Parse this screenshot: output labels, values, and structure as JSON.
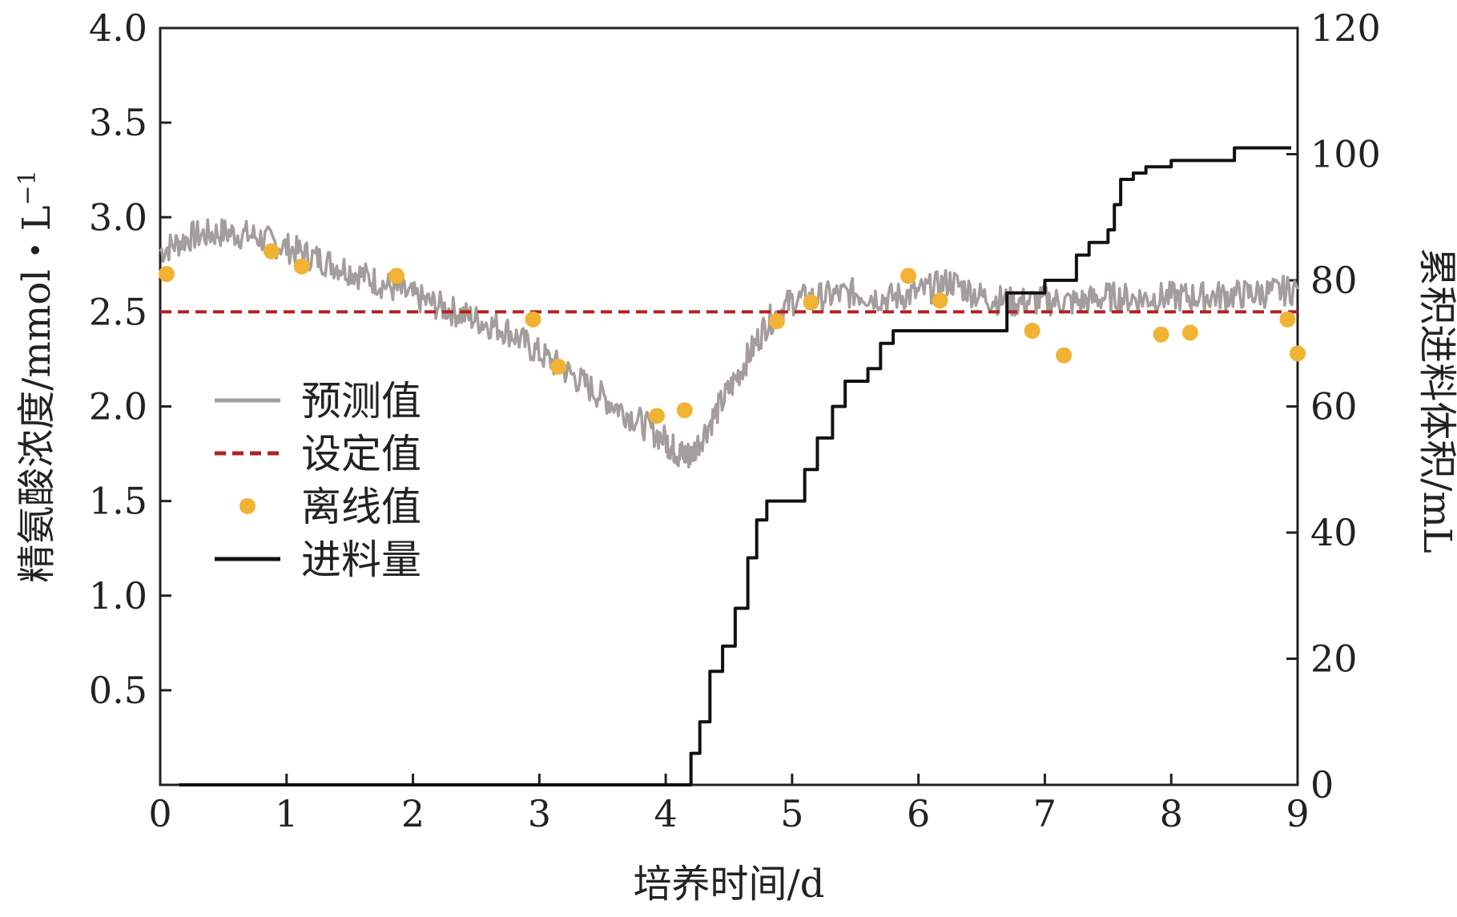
{
  "chart_data": {
    "type": "line",
    "xlabel": "培养时间/d",
    "ylabel_left": "精氨酸浓度/mmol・L",
    "ylabel_left_sup": "−1",
    "ylabel_right": "累积进料体积/mL",
    "xlim": [
      0,
      9
    ],
    "ylim_left": [
      0,
      4.0
    ],
    "ylim_right": [
      0,
      120
    ],
    "x_ticks": [
      0,
      1,
      2,
      3,
      4,
      5,
      6,
      7,
      8,
      9
    ],
    "y_left_ticks": [
      0.5,
      1.0,
      1.5,
      2.0,
      2.5,
      3.0,
      3.5,
      4.0
    ],
    "y_left_tick_labels": [
      "0.5",
      "1.0",
      "1.5",
      "2.0",
      "2.5",
      "3.0",
      "3.5",
      "4.0"
    ],
    "y_right_ticks": [
      0,
      20,
      40,
      60,
      80,
      100,
      120
    ],
    "grid": false,
    "legend_position": "left",
    "colors": {
      "predicted": "#a39d9b",
      "setpoint": "#b22222",
      "offline": "#f2b233",
      "feed": "#111111",
      "axis": "#222222"
    },
    "series": [
      {
        "name": "预测值",
        "axis": "left",
        "style": "line",
        "x": [
          0.0,
          0.25,
          0.5,
          0.75,
          1.0,
          1.25,
          1.5,
          1.75,
          2.0,
          2.25,
          2.5,
          2.75,
          3.0,
          3.25,
          3.5,
          3.75,
          4.0,
          4.1,
          4.2,
          4.4,
          4.6,
          4.8,
          5.0,
          5.25,
          5.5,
          5.75,
          6.0,
          6.25,
          6.5,
          6.75,
          7.0,
          7.25,
          7.5,
          7.75,
          8.0,
          8.25,
          8.5,
          8.75,
          9.0
        ],
        "y": [
          2.82,
          2.9,
          2.92,
          2.9,
          2.84,
          2.78,
          2.72,
          2.65,
          2.58,
          2.52,
          2.46,
          2.4,
          2.28,
          2.17,
          2.05,
          1.94,
          1.82,
          1.75,
          1.74,
          1.97,
          2.2,
          2.44,
          2.56,
          2.58,
          2.6,
          2.57,
          2.6,
          2.66,
          2.58,
          2.55,
          2.56,
          2.55,
          2.58,
          2.57,
          2.58,
          2.58,
          2.59,
          2.6,
          2.62
        ]
      },
      {
        "name": "设定值",
        "axis": "left",
        "style": "dashed",
        "x": [
          0,
          9
        ],
        "y": [
          2.5,
          2.5
        ]
      },
      {
        "name": "离线值",
        "axis": "left",
        "style": "scatter",
        "x": [
          0.05,
          0.88,
          1.12,
          1.87,
          2.95,
          3.15,
          3.93,
          4.15,
          4.88,
          5.15,
          5.92,
          6.17,
          6.9,
          7.15,
          7.92,
          8.15,
          8.92,
          9.0
        ],
        "y": [
          2.7,
          2.82,
          2.74,
          2.69,
          2.46,
          2.21,
          1.95,
          1.98,
          2.45,
          2.55,
          2.69,
          2.56,
          2.4,
          2.27,
          2.38,
          2.39,
          2.46,
          2.28
        ]
      },
      {
        "name": "进料量",
        "axis": "right",
        "style": "step",
        "x": [
          0.15,
          4.15,
          4.2,
          4.27,
          4.35,
          4.45,
          4.55,
          4.65,
          4.72,
          4.8,
          4.85,
          5.1,
          5.2,
          5.32,
          5.42,
          5.6,
          5.7,
          5.8,
          6.0,
          6.2,
          6.4,
          6.65,
          6.7,
          6.95,
          7.0,
          7.2,
          7.25,
          7.35,
          7.5,
          7.55,
          7.6,
          7.7,
          7.8,
          8.0,
          8.3,
          8.5,
          8.75,
          8.95
        ],
        "y": [
          0,
          0,
          5,
          10,
          18,
          22,
          28,
          36,
          42,
          45,
          45,
          50,
          55,
          60,
          64,
          66,
          70,
          72,
          72,
          72,
          72,
          72,
          78,
          78,
          80,
          80,
          84,
          86,
          88,
          92,
          96,
          97,
          98,
          99,
          99,
          101,
          101,
          101
        ]
      }
    ]
  }
}
